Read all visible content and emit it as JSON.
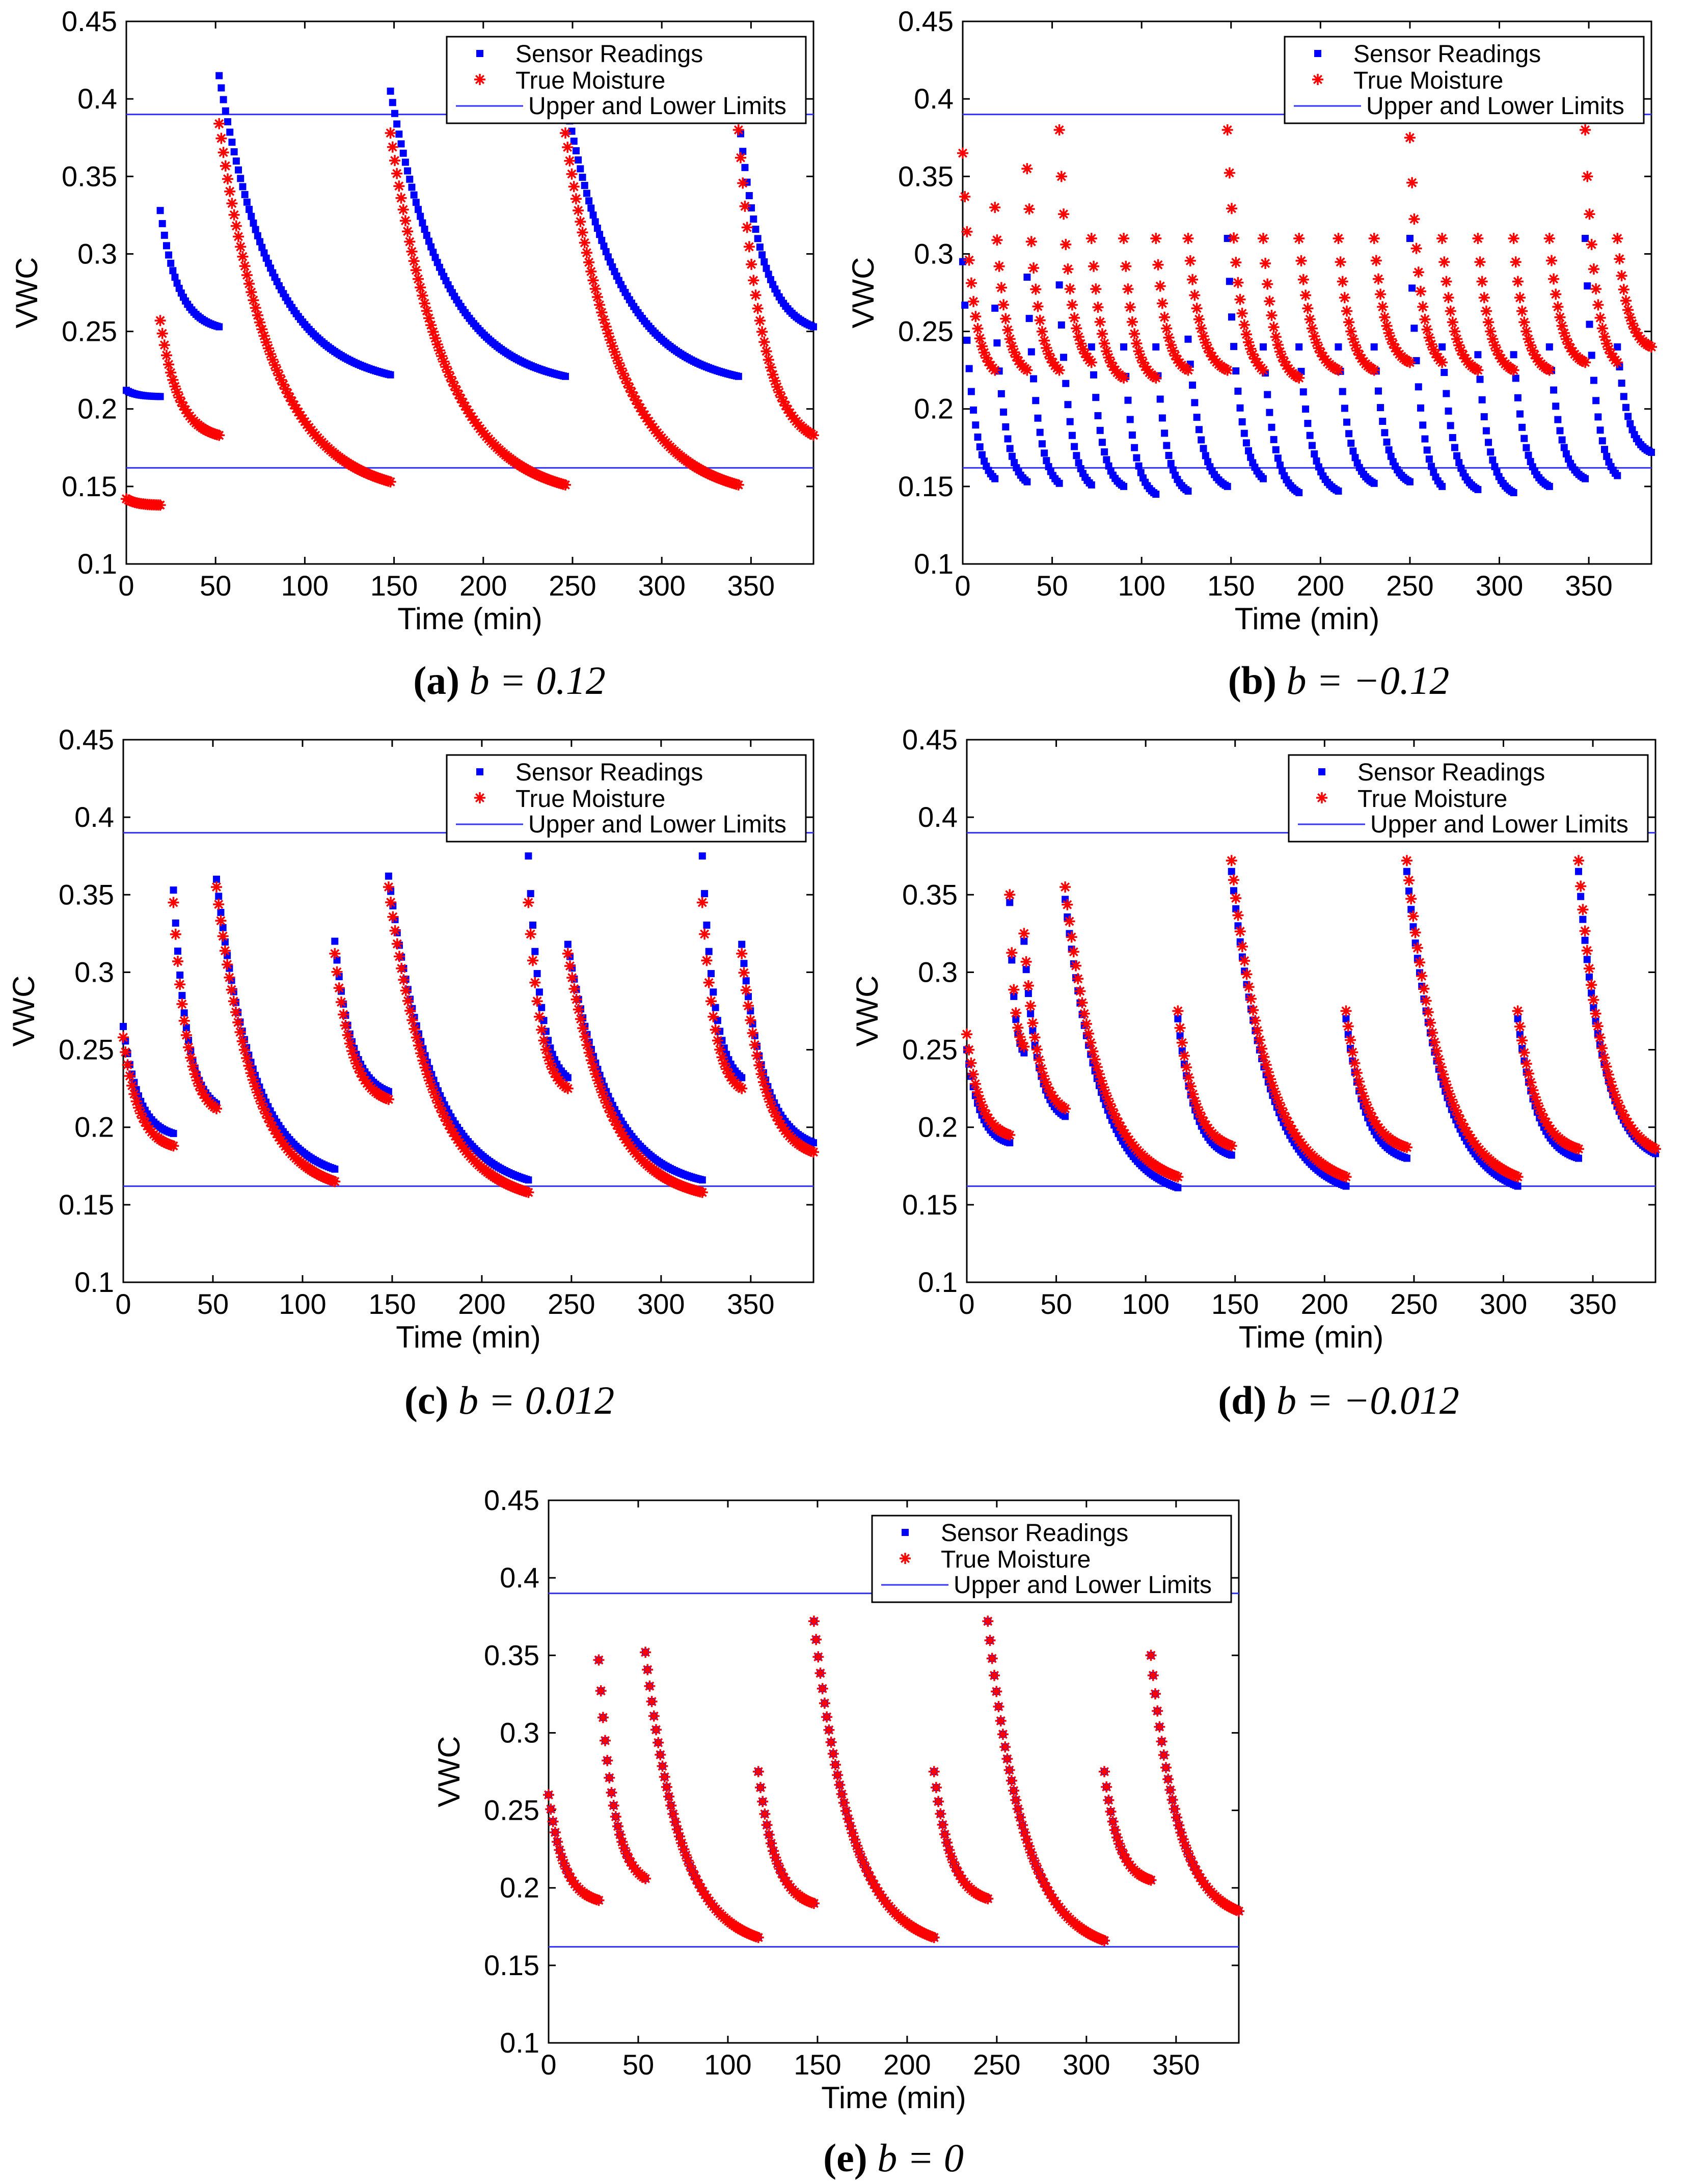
{
  "figure": {
    "legend": {
      "sensor": "Sensor Readings",
      "truth": "True Moisture",
      "limits": "Upper and Lower Limits"
    },
    "colors": {
      "sensor": "#0000ff",
      "truth": "#ff0000",
      "limits": "#3333ff"
    }
  },
  "chart_data": [
    {
      "id": "a",
      "type": "scatter",
      "caption_letter": "(a)",
      "caption_expr": "b = 0.12",
      "xlabel": "Time (min)",
      "ylabel": "VWC",
      "xlim": [
        0,
        385
      ],
      "ylim": [
        0.1,
        0.45
      ],
      "xticks": [
        0,
        50,
        100,
        150,
        200,
        250,
        300,
        350
      ],
      "yticks": [
        0.1,
        0.15,
        0.2,
        0.25,
        0.3,
        0.35,
        0.4,
        0.45
      ],
      "limits": [
        0.162,
        0.39
      ],
      "series": [
        {
          "name": "Sensor Readings",
          "marker": "square",
          "segments": [
            [
              0,
              19,
              0.212,
              0.208
            ],
            [
              19,
              52,
              0.328,
              0.253
            ],
            [
              52,
              148,
              0.415,
              0.222
            ],
            [
              148,
              246,
              0.405,
              0.221
            ],
            [
              246,
              343,
              0.4,
              0.221
            ],
            [
              343,
              385,
              0.39,
              0.253
            ]
          ]
        },
        {
          "name": "True Moisture",
          "marker": "star",
          "segments": [
            [
              0,
              19,
              0.142,
              0.138
            ],
            [
              19,
              52,
              0.257,
              0.183
            ],
            [
              52,
              148,
              0.384,
              0.153
            ],
            [
              148,
              246,
              0.378,
              0.151
            ],
            [
              246,
              343,
              0.378,
              0.151
            ],
            [
              343,
              385,
              0.38,
              0.183
            ]
          ]
        }
      ]
    },
    {
      "id": "b",
      "type": "scatter",
      "caption_letter": "(b)",
      "caption_expr": "b = −0.12",
      "xlabel": "Time (min)",
      "ylabel": "VWC",
      "xlim": [
        0,
        385
      ],
      "ylim": [
        0.1,
        0.45
      ],
      "xticks": [
        0,
        50,
        100,
        150,
        200,
        250,
        300,
        350
      ],
      "yticks": [
        0.1,
        0.15,
        0.2,
        0.25,
        0.3,
        0.35,
        0.4,
        0.45
      ],
      "limits": [
        0.162,
        0.39
      ],
      "series": [
        {
          "name": "Sensor Readings",
          "marker": "square",
          "segments": [
            [
              0,
              18,
              0.295,
              0.155
            ],
            [
              18,
              36,
              0.265,
              0.153
            ],
            [
              36,
              54,
              0.285,
              0.152
            ],
            [
              54,
              72,
              0.28,
              0.151
            ],
            [
              72,
              90,
              0.24,
              0.15
            ],
            [
              90,
              108,
              0.24,
              0.145
            ],
            [
              108,
              126,
              0.24,
              0.147
            ],
            [
              126,
              148,
              0.245,
              0.15
            ],
            [
              148,
              168,
              0.31,
              0.155
            ],
            [
              168,
              188,
              0.24,
              0.146
            ],
            [
              188,
              210,
              0.24,
              0.147
            ],
            [
              210,
              230,
              0.24,
              0.152
            ],
            [
              230,
              250,
              0.24,
              0.153
            ],
            [
              250,
              268,
              0.31,
              0.15
            ],
            [
              268,
              288,
              0.24,
              0.148
            ],
            [
              288,
              308,
              0.235,
              0.146
            ],
            [
              308,
              328,
              0.235,
              0.15
            ],
            [
              328,
              348,
              0.24,
              0.155
            ],
            [
              348,
              366,
              0.31,
              0.157
            ],
            [
              366,
              385,
              0.24,
              0.172
            ]
          ]
        },
        {
          "name": "True Moisture",
          "marker": "star",
          "segments": [
            [
              0,
              18,
              0.365,
              0.225
            ],
            [
              18,
              36,
              0.33,
              0.225
            ],
            [
              36,
              54,
              0.355,
              0.225
            ],
            [
              54,
              72,
              0.38,
              0.23
            ],
            [
              72,
              90,
              0.31,
              0.22
            ],
            [
              90,
              108,
              0.31,
              0.22
            ],
            [
              108,
              126,
              0.31,
              0.225
            ],
            [
              126,
              148,
              0.31,
              0.225
            ],
            [
              148,
              168,
              0.38,
              0.225
            ],
            [
              168,
              188,
              0.31,
              0.22
            ],
            [
              188,
              210,
              0.31,
              0.225
            ],
            [
              210,
              230,
              0.31,
              0.225
            ],
            [
              230,
              250,
              0.31,
              0.23
            ],
            [
              250,
              268,
              0.375,
              0.23
            ],
            [
              268,
              288,
              0.31,
              0.225
            ],
            [
              288,
              308,
              0.31,
              0.225
            ],
            [
              308,
              328,
              0.31,
              0.225
            ],
            [
              328,
              348,
              0.31,
              0.23
            ],
            [
              348,
              366,
              0.38,
              0.23
            ],
            [
              366,
              385,
              0.31,
              0.24
            ]
          ]
        }
      ]
    },
    {
      "id": "c",
      "type": "scatter",
      "caption_letter": "(c)",
      "caption_expr": "b = 0.012",
      "xlabel": "Time (min)",
      "ylabel": "VWC",
      "xlim": [
        0,
        385
      ],
      "ylim": [
        0.1,
        0.45
      ],
      "xticks": [
        0,
        50,
        100,
        150,
        200,
        250,
        300,
        350
      ],
      "yticks": [
        0.1,
        0.15,
        0.2,
        0.25,
        0.3,
        0.35,
        0.4,
        0.45
      ],
      "limits": [
        0.162,
        0.39
      ],
      "series": [
        {
          "name": "Sensor Readings",
          "marker": "square",
          "segments": [
            [
              0,
              28,
              0.265,
              0.196
            ],
            [
              28,
              52,
              0.353,
              0.215
            ],
            [
              52,
              118,
              0.36,
              0.173
            ],
            [
              118,
              148,
              0.32,
              0.223
            ],
            [
              148,
              226,
              0.362,
              0.166
            ],
            [
              226,
              248,
              0.375,
              0.232
            ],
            [
              248,
              323,
              0.318,
              0.166
            ],
            [
              323,
              345,
              0.375,
              0.232
            ],
            [
              345,
              385,
              0.318,
              0.19
            ]
          ]
        },
        {
          "name": "True Moisture",
          "marker": "star",
          "segments": [
            [
              0,
              28,
              0.258,
              0.188
            ],
            [
              28,
              52,
              0.345,
              0.212
            ],
            [
              52,
              118,
              0.355,
              0.165
            ],
            [
              118,
              148,
              0.312,
              0.218
            ],
            [
              148,
              226,
              0.355,
              0.158
            ],
            [
              226,
              248,
              0.345,
              0.225
            ],
            [
              248,
              323,
              0.312,
              0.158
            ],
            [
              323,
              345,
              0.345,
              0.225
            ],
            [
              345,
              385,
              0.312,
              0.184
            ]
          ]
        }
      ]
    },
    {
      "id": "d",
      "type": "scatter",
      "caption_letter": "(d)",
      "caption_expr": "b = −0.012",
      "xlabel": "Time (min)",
      "ylabel": "VWC",
      "xlim": [
        0,
        385
      ],
      "ylim": [
        0.1,
        0.45
      ],
      "xticks": [
        0,
        50,
        100,
        150,
        200,
        250,
        300,
        350
      ],
      "yticks": [
        0.1,
        0.15,
        0.2,
        0.25,
        0.3,
        0.35,
        0.4,
        0.45
      ],
      "limits": [
        0.162,
        0.39
      ],
      "series": [
        {
          "name": "Sensor Readings",
          "marker": "square",
          "segments": [
            [
              0,
              24,
              0.25,
              0.19
            ],
            [
              24,
              32,
              0.345,
              0.248
            ],
            [
              32,
              55,
              0.32,
              0.207
            ],
            [
              55,
              118,
              0.347,
              0.161
            ],
            [
              118,
              148,
              0.27,
              0.182
            ],
            [
              148,
              212,
              0.365,
              0.162
            ],
            [
              212,
              246,
              0.27,
              0.18
            ],
            [
              246,
              308,
              0.365,
              0.162
            ],
            [
              308,
              342,
              0.27,
              0.18
            ],
            [
              342,
              385,
              0.365,
              0.183
            ]
          ]
        },
        {
          "name": "True Moisture",
          "marker": "star",
          "segments": [
            [
              0,
              24,
              0.26,
              0.195
            ],
            [
              24,
              32,
              0.35,
              0.252
            ],
            [
              32,
              55,
              0.325,
              0.212
            ],
            [
              55,
              118,
              0.355,
              0.168
            ],
            [
              118,
              148,
              0.275,
              0.188
            ],
            [
              148,
              212,
              0.372,
              0.168
            ],
            [
              212,
              246,
              0.275,
              0.187
            ],
            [
              246,
              308,
              0.372,
              0.168
            ],
            [
              308,
              342,
              0.275,
              0.186
            ],
            [
              342,
              385,
              0.372,
              0.186
            ]
          ]
        }
      ]
    },
    {
      "id": "e",
      "type": "scatter",
      "caption_letter": "(e)",
      "caption_expr": "b = 0",
      "xlabel": "Time (min)",
      "ylabel": "VWC",
      "xlim": [
        0,
        385
      ],
      "ylim": [
        0.1,
        0.45
      ],
      "xticks": [
        0,
        50,
        100,
        150,
        200,
        250,
        300,
        350
      ],
      "yticks": [
        0.1,
        0.15,
        0.2,
        0.25,
        0.3,
        0.35,
        0.4,
        0.45
      ],
      "limits": [
        0.162,
        0.39
      ],
      "series": [
        {
          "name": "Sensor Readings",
          "marker": "square",
          "segments": [
            [
              0,
              28,
              0.26,
              0.192
            ],
            [
              28,
              54,
              0.347,
              0.206
            ],
            [
              54,
              117,
              0.352,
              0.168
            ],
            [
              117,
              148,
              0.275,
              0.19
            ],
            [
              148,
              215,
              0.372,
              0.168
            ],
            [
              215,
              245,
              0.275,
              0.193
            ],
            [
              245,
              310,
              0.372,
              0.166
            ],
            [
              310,
              336,
              0.275,
              0.205
            ],
            [
              336,
              385,
              0.35,
              0.185
            ]
          ]
        },
        {
          "name": "True Moisture",
          "marker": "star",
          "segments": [
            [
              0,
              28,
              0.26,
              0.192
            ],
            [
              28,
              54,
              0.347,
              0.206
            ],
            [
              54,
              117,
              0.352,
              0.168
            ],
            [
              117,
              148,
              0.275,
              0.19
            ],
            [
              148,
              215,
              0.372,
              0.168
            ],
            [
              215,
              245,
              0.275,
              0.193
            ],
            [
              245,
              310,
              0.372,
              0.166
            ],
            [
              310,
              336,
              0.275,
              0.205
            ],
            [
              336,
              385,
              0.35,
              0.185
            ]
          ]
        }
      ]
    }
  ]
}
